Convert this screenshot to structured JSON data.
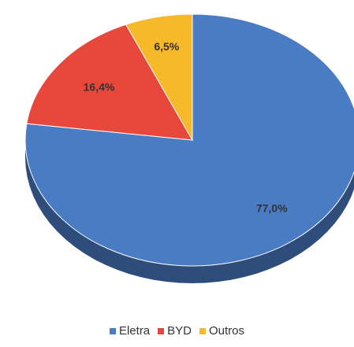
{
  "chart_data": {
    "type": "pie",
    "title": "",
    "categories": [
      "Eletra",
      "BYD",
      "Outros"
    ],
    "values": [
      77.0,
      16.4,
      6.5
    ],
    "labels": [
      "77,0%",
      "16,4%",
      "6,5%"
    ],
    "colors": [
      "#4a7cc4",
      "#e8483c",
      "#f5b92a"
    ],
    "legend_position": "bottom",
    "style": "3d"
  }
}
